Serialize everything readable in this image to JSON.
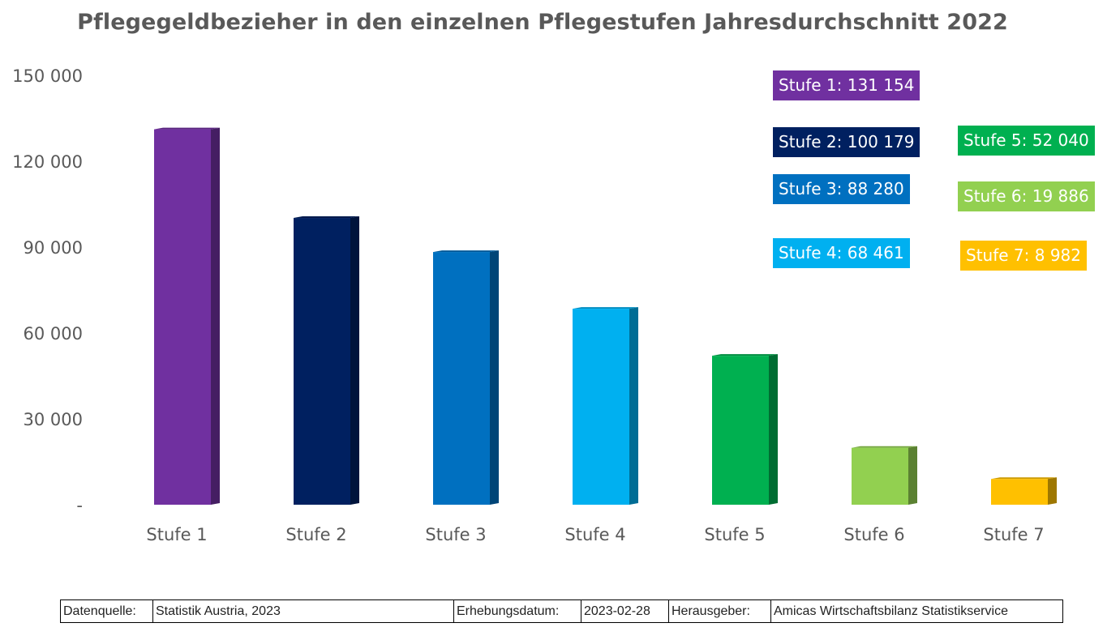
{
  "chart_data": {
    "type": "bar",
    "title": "Pflegegeldbezieher in den einzelnen Pflegestufen Jahresdurchschnitt 2022",
    "categories": [
      "Stufe 1",
      "Stufe 2",
      "Stufe 3",
      "Stufe 4",
      "Stufe 5",
      "Stufe 6",
      "Stufe 7"
    ],
    "values": [
      131154,
      100179,
      88280,
      68461,
      52040,
      19886,
      8982
    ],
    "ylim": [
      0,
      150000
    ],
    "yticks": [
      0,
      30000,
      60000,
      90000,
      120000,
      150000
    ],
    "ytick_labels": [
      "-",
      "30 000",
      "60 000",
      "90 000",
      "120 000",
      "150 000"
    ],
    "colors": [
      "#7030a0",
      "#002060",
      "#0070c0",
      "#00b0f0",
      "#00b050",
      "#92d050",
      "#ffc000"
    ],
    "grid": false,
    "callouts": [
      "Stufe 1:  131 154",
      "Stufe 2:  100 179",
      "Stufe 3:  88 280",
      "Stufe 4:  68 461",
      "Stufe 5:  52 040",
      "Stufe 6:  19 886",
      "Stufe 7:  8 982"
    ]
  },
  "source_table": {
    "datenquelle_label": "Datenquelle:",
    "datenquelle_value": "Statistik Austria, 2023",
    "erhebungsdatum_label": "Erhebungsdatum:",
    "erhebungsdatum_value": "2023-02-28",
    "herausgeber_label": "Herausgeber:",
    "herausgeber_value": "Amicas Wirtschaftsbilanz Statistikservice"
  }
}
